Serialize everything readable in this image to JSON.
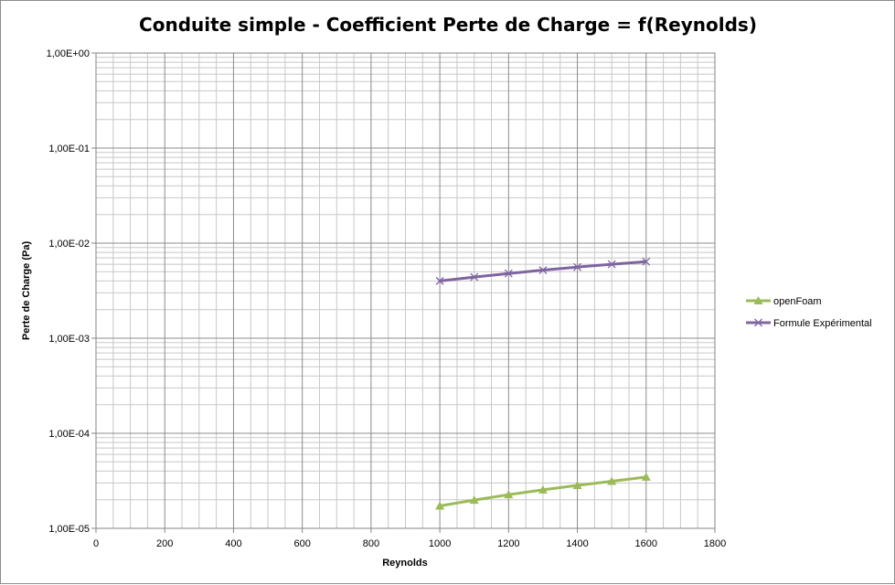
{
  "chart_data": {
    "type": "scatter",
    "title": "Conduite simple - Coefficient Perte de Charge = f(Reynolds)",
    "xlabel": "Reynolds",
    "ylabel": "Perte de Charge (Pa)",
    "xlim": [
      0,
      1800
    ],
    "ylim": [
      1e-05,
      1
    ],
    "yscale": "log",
    "x_ticks": [
      0,
      200,
      400,
      600,
      800,
      1000,
      1200,
      1400,
      1600,
      1800
    ],
    "x_tick_labels": [
      "0",
      "200",
      "400",
      "600",
      "800",
      "1000",
      "1200",
      "1400",
      "1600",
      "1800"
    ],
    "y_ticks": [
      1e-05,
      0.0001,
      0.001,
      0.01,
      0.1,
      1
    ],
    "y_tick_labels": [
      "1,00E-05",
      "1,00E-04",
      "1,00E-03",
      "1,00E-02",
      "1,00E-01",
      "1,00E+00"
    ],
    "grid": true,
    "legend_position": "right",
    "series": [
      {
        "name": "openFoam",
        "color": "#9bbb59",
        "marker": "triangle",
        "x": [
          1000,
          1100,
          1200,
          1300,
          1400,
          1500,
          1600
        ],
        "y": [
          1.72e-05,
          1.98e-05,
          2.26e-05,
          2.54e-05,
          2.83e-05,
          3.13e-05,
          3.46e-05
        ]
      },
      {
        "name": "Formule Expérimental",
        "color": "#8064a2",
        "marker": "x",
        "x": [
          1000,
          1100,
          1200,
          1300,
          1400,
          1500,
          1600
        ],
        "y": [
          0.004,
          0.0044,
          0.0048,
          0.0052,
          0.0056,
          0.006,
          0.0064
        ]
      }
    ]
  }
}
